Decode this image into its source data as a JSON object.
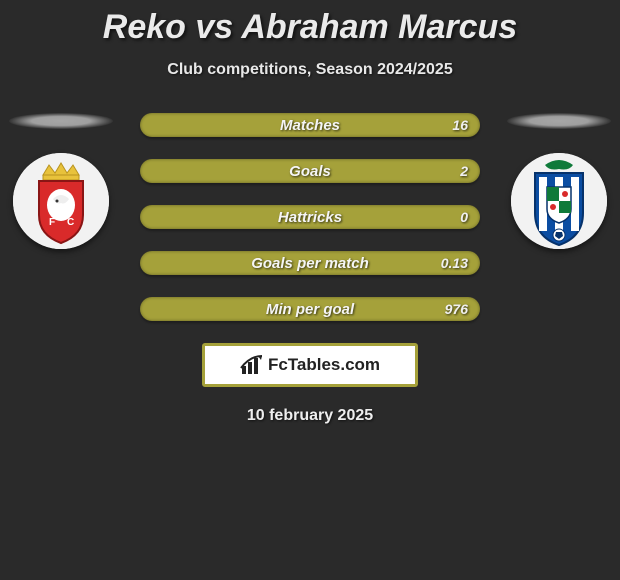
{
  "title": "Reko vs Abraham Marcus",
  "subtitle": "Club competitions, Season 2024/2025",
  "date": "10 february 2025",
  "brand": "FcTables.com",
  "colors": {
    "bar_fill": "#a5a13a",
    "bar_value_text": "#f0f0f0",
    "brand_border": "#a5a13a",
    "background": "#2a2a2a"
  },
  "stats": [
    {
      "label": "Matches",
      "value_right": "16"
    },
    {
      "label": "Goals",
      "value_right": "2"
    },
    {
      "label": "Hattricks",
      "value_right": "0"
    },
    {
      "label": "Goals per match",
      "value_right": "0.13"
    },
    {
      "label": "Min per goal",
      "value_right": "976"
    }
  ],
  "left_club": {
    "name": "penafiel-crest",
    "primary": "#d92a2a",
    "accent": "#e8c23b"
  },
  "right_club": {
    "name": "fc-porto-crest",
    "primary": "#0b4da2",
    "accent": "#0f7a3a"
  }
}
